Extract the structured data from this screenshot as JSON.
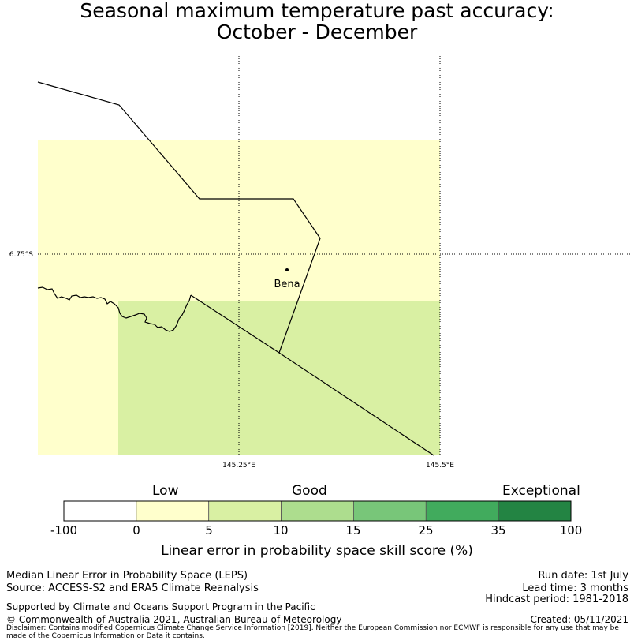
{
  "title": {
    "line1": "Seasonal maximum temperature past accuracy:",
    "line2": "October - December"
  },
  "map": {
    "lat_label": "6.75°S",
    "lon_labels": [
      "145.25°E",
      "145.5°E"
    ],
    "place": "Bena",
    "colors": {
      "low": "#ffffcc",
      "good_low": "#d9f0a3",
      "coast": "#000000"
    }
  },
  "colorbar": {
    "categories": [
      "Low",
      "Good",
      "Exceptional"
    ],
    "ticks": [
      "-100",
      "0",
      "5",
      "10",
      "15",
      "25",
      "35",
      "100"
    ],
    "colors": [
      "#ffffff",
      "#ffffcc",
      "#d9f0a3",
      "#addd8e",
      "#78c679",
      "#41ab5d",
      "#238443"
    ],
    "label": "Linear error in probability space skill score (%)"
  },
  "footer": {
    "left1": "Median Linear Error in Probability Space (LEPS)",
    "left2": "Source: ACCESS-S2 and ERA5 Climate Reanalysis",
    "support": "Supported by Climate and Oceans Support Program in the Pacific",
    "copyright": "© Commonwealth of Australia 2021, Australian Bureau of Meteorology",
    "disclaimer": "Disclaimer: Contains modified Copernicus Climate Change Service Information [2019]. Neither the European Commission nor ECMWF is responsible for any use that may be made of the Copernicus Information or Data it contains.",
    "run_date": "Run date: 1st July",
    "lead_time": "Lead time: 3 months",
    "hindcast": "Hindcast period: 1981-2018",
    "created": "Created: 05/11/2021"
  }
}
